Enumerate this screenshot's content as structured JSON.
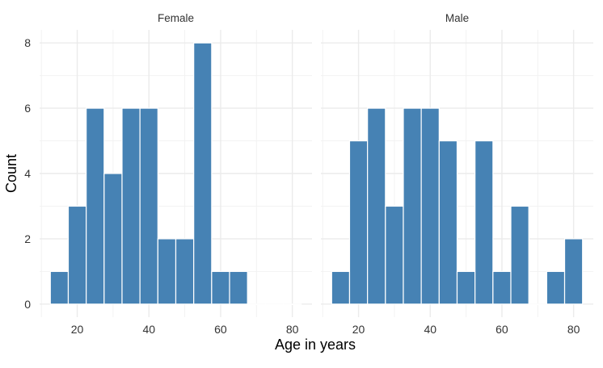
{
  "chart_data": {
    "type": "bar",
    "xlabel": "Age in years",
    "ylabel": "Count",
    "bin_width": 5,
    "xlim": [
      9.5,
      85.5
    ],
    "ylim": [
      -0.4,
      8.4
    ],
    "x_ticks": [
      20,
      40,
      60,
      80
    ],
    "y_ticks": [
      0,
      2,
      4,
      6,
      8
    ],
    "grid": true,
    "bar_color": "#4682b4",
    "bar_outline_color": "#ffffff",
    "panels": [
      {
        "title": "Female",
        "bins": [
          {
            "center": 15,
            "count": 1
          },
          {
            "center": 20,
            "count": 3
          },
          {
            "center": 25,
            "count": 6
          },
          {
            "center": 30,
            "count": 4
          },
          {
            "center": 35,
            "count": 6
          },
          {
            "center": 40,
            "count": 6
          },
          {
            "center": 45,
            "count": 2
          },
          {
            "center": 50,
            "count": 2
          },
          {
            "center": 55,
            "count": 8
          },
          {
            "center": 60,
            "count": 1
          },
          {
            "center": 65,
            "count": 1
          },
          {
            "center": 70,
            "count": 0
          },
          {
            "center": 75,
            "count": 0
          },
          {
            "center": 80,
            "count": 0
          }
        ]
      },
      {
        "title": "Male",
        "bins": [
          {
            "center": 15,
            "count": 1
          },
          {
            "center": 20,
            "count": 5
          },
          {
            "center": 25,
            "count": 6
          },
          {
            "center": 30,
            "count": 3
          },
          {
            "center": 35,
            "count": 6
          },
          {
            "center": 40,
            "count": 6
          },
          {
            "center": 45,
            "count": 5
          },
          {
            "center": 50,
            "count": 1
          },
          {
            "center": 55,
            "count": 5
          },
          {
            "center": 60,
            "count": 1
          },
          {
            "center": 65,
            "count": 3
          },
          {
            "center": 70,
            "count": 0
          },
          {
            "center": 75,
            "count": 1
          },
          {
            "center": 80,
            "count": 2
          }
        ]
      }
    ]
  }
}
